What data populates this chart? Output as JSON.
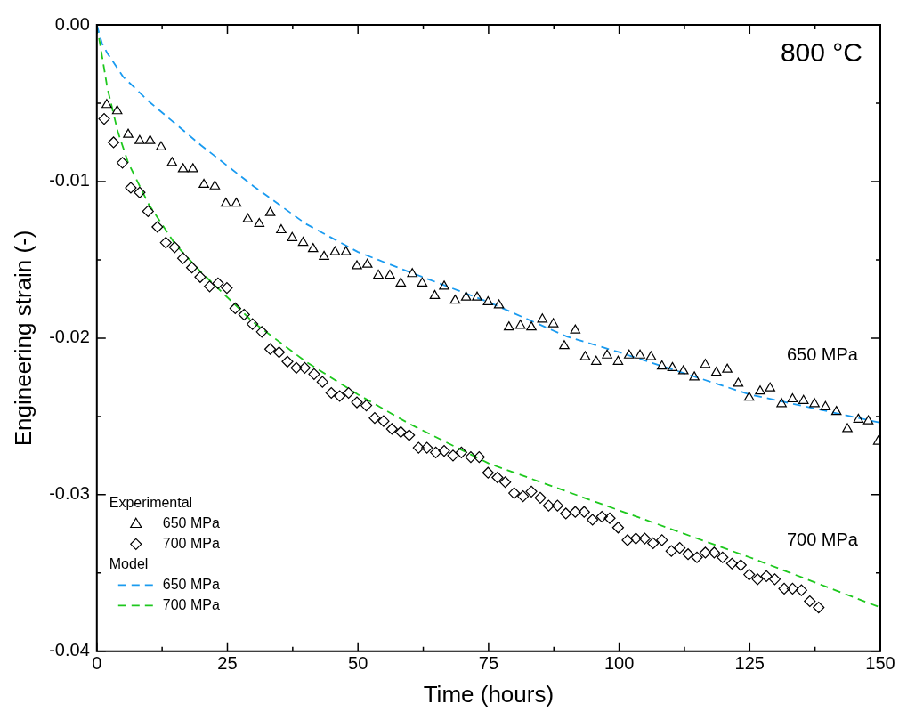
{
  "chart_data": {
    "type": "scatter",
    "xlabel": "Time (hours)",
    "ylabel": "Engineering strain (-)",
    "xlim": [
      0,
      150
    ],
    "xticks": [
      0,
      {
        "value": 12.5,
        "label": null
      },
      25,
      {
        "value": 37.5,
        "label": null
      },
      50,
      {
        "value": 62.5,
        "label": null
      },
      75,
      {
        "value": 87.5,
        "label": null
      },
      100,
      {
        "value": 112.5,
        "label": null
      },
      125,
      {
        "value": 137.5,
        "label": null
      },
      150
    ],
    "ylim": [
      -0.04,
      0
    ],
    "yticks": [
      {
        "value": -0.04,
        "label": "-0.04"
      },
      {
        "value": -0.035,
        "label": null
      },
      {
        "value": -0.03,
        "label": "-0.03"
      },
      {
        "value": -0.025,
        "label": null
      },
      {
        "value": -0.02,
        "label": "-0.02"
      },
      {
        "value": -0.015,
        "label": null
      },
      {
        "value": -0.01,
        "label": "-0.01"
      },
      {
        "value": -0.005,
        "label": null
      },
      {
        "value": 0,
        "label": "0.00"
      }
    ],
    "grid": false,
    "legend": "bottom left",
    "annotations": [
      "800 °C",
      "Experimental",
      "Model",
      "650 MPa",
      "700 MPa"
    ],
    "series": [
      {
        "name": "650 MPa",
        "marker": "triangle",
        "color": "#000000",
        "x": [
          1.9,
          3.9,
          6,
          8.2,
          10.2,
          12.3,
          14.4,
          16.5,
          18.4,
          20.5,
          22.6,
          24.7,
          26.7,
          28.9,
          31.1,
          33.2,
          35.3,
          37.4,
          39.5,
          41.4,
          43.5,
          45.6,
          47.7,
          49.8,
          51.8,
          53.9,
          56.1,
          58.2,
          60.4,
          62.3,
          64.7,
          66.5,
          68.6,
          70.7,
          72.8,
          74.9,
          77,
          78.9,
          81.1,
          83.2,
          85.3,
          87.4,
          89.5,
          91.6,
          93.5,
          95.6,
          97.7,
          99.8,
          101.9,
          104,
          106.1,
          108.2,
          110.2,
          112.3,
          114.4,
          116.5,
          118.6,
          120.7,
          122.8,
          124.9,
          127,
          128.9,
          131.1,
          133.2,
          135.3,
          137.4,
          139.5,
          141.6,
          143.7,
          145.8,
          147.7,
          149.6
        ],
        "values": [
          -0.0051,
          -0.0055,
          -0.007,
          -0.0074,
          -0.0074,
          -0.0078,
          -0.0088,
          -0.0092,
          -0.0092,
          -0.0102,
          -0.0103,
          -0.0114,
          -0.0114,
          -0.0124,
          -0.0127,
          -0.012,
          -0.0131,
          -0.0136,
          -0.0139,
          -0.0143,
          -0.0148,
          -0.0145,
          -0.0145,
          -0.0154,
          -0.0153,
          -0.016,
          -0.016,
          -0.0165,
          -0.0159,
          -0.0165,
          -0.0173,
          -0.0167,
          -0.0176,
          -0.0174,
          -0.0174,
          -0.0177,
          -0.0179,
          -0.0193,
          -0.0192,
          -0.0193,
          -0.0188,
          -0.0191,
          -0.0205,
          -0.0195,
          -0.0212,
          -0.0215,
          -0.0211,
          -0.0215,
          -0.0211,
          -0.0211,
          -0.0212,
          -0.0218,
          -0.0219,
          -0.0221,
          -0.0225,
          -0.0217,
          -0.0222,
          -0.022,
          -0.0229,
          -0.0238,
          -0.0234,
          -0.0232,
          -0.0242,
          -0.0239,
          -0.024,
          -0.0242,
          -0.0244,
          -0.0247,
          -0.0258,
          -0.0252,
          -0.0253,
          -0.0266
        ]
      },
      {
        "name": "700 MPa",
        "marker": "diamond",
        "color": "#000000",
        "x": [
          1.4,
          3.2,
          4.9,
          6.5,
          8.2,
          9.8,
          11.6,
          13.2,
          14.9,
          16.5,
          18.2,
          19.8,
          21.6,
          23.2,
          24.9,
          26.5,
          28.2,
          29.8,
          31.6,
          33.2,
          34.9,
          36.5,
          38.2,
          39.8,
          41.6,
          43.2,
          44.9,
          46.5,
          48.2,
          49.8,
          51.6,
          53.2,
          54.9,
          56.5,
          58.2,
          59.8,
          61.6,
          63.2,
          64.9,
          66.5,
          68.2,
          69.8,
          71.6,
          73.2,
          74.9,
          76.7,
          78.2,
          79.9,
          81.6,
          83.2,
          84.9,
          86.5,
          88.2,
          89.8,
          91.6,
          93.3,
          94.9,
          96.7,
          98.2,
          99.8,
          101.6,
          103.2,
          104.9,
          106.5,
          108.2,
          110,
          111.6,
          113.2,
          114.9,
          116.5,
          118.2,
          119.8,
          121.6,
          123.3,
          124.9,
          126.5,
          128.2,
          129.8,
          131.6,
          133.2,
          134.9,
          136.5,
          138.2
        ],
        "values": [
          -0.006,
          -0.0075,
          -0.0088,
          -0.0104,
          -0.0107,
          -0.0119,
          -0.0129,
          -0.0139,
          -0.0142,
          -0.0149,
          -0.0155,
          -0.0161,
          -0.0167,
          -0.0165,
          -0.0168,
          -0.0181,
          -0.0185,
          -0.0191,
          -0.0196,
          -0.0207,
          -0.0209,
          -0.0215,
          -0.0219,
          -0.0219,
          -0.0223,
          -0.0228,
          -0.0235,
          -0.0237,
          -0.0235,
          -0.0241,
          -0.0243,
          -0.0251,
          -0.0253,
          -0.0258,
          -0.026,
          -0.0262,
          -0.027,
          -0.027,
          -0.0273,
          -0.0272,
          -0.0275,
          -0.0273,
          -0.0276,
          -0.0276,
          -0.0286,
          -0.0289,
          -0.0292,
          -0.0299,
          -0.0301,
          -0.0298,
          -0.0302,
          -0.0307,
          -0.0307,
          -0.0312,
          -0.0311,
          -0.0311,
          -0.0316,
          -0.0314,
          -0.0315,
          -0.0321,
          -0.0329,
          -0.0328,
          -0.0328,
          -0.0331,
          -0.0329,
          -0.0336,
          -0.0334,
          -0.0338,
          -0.034,
          -0.0337,
          -0.0337,
          -0.034,
          -0.0344,
          -0.0345,
          -0.0351,
          -0.0354,
          -0.0352,
          -0.0354,
          -0.036,
          -0.036,
          -0.0361,
          -0.0368,
          -0.0372
        ]
      },
      {
        "name": "650 MPa",
        "type": "line",
        "line_style": "dashed",
        "color": "#1a9bf0",
        "x": [
          0,
          1,
          2,
          5,
          10,
          20,
          30,
          40,
          50,
          60,
          75,
          90,
          100,
          125,
          150
        ],
        "values": [
          0,
          -0.0012,
          -0.0018,
          -0.0033,
          -0.0049,
          -0.0077,
          -0.0103,
          -0.0127,
          -0.0145,
          -0.0158,
          -0.0177,
          -0.0199,
          -0.0209,
          -0.0236,
          -0.0254
        ]
      },
      {
        "name": "700 MPa",
        "type": "line",
        "line_style": "dashed",
        "color": "#1ec81e",
        "x": [
          0,
          1,
          2,
          4,
          6,
          10,
          15,
          20,
          30,
          40,
          50,
          60,
          75,
          90,
          100,
          125,
          150
        ],
        "values": [
          0,
          -0.002,
          -0.004,
          -0.0068,
          -0.0088,
          -0.0115,
          -0.014,
          -0.0158,
          -0.019,
          -0.0215,
          -0.0236,
          -0.0255,
          -0.028,
          -0.0298,
          -0.031,
          -0.034,
          -0.0372
        ]
      }
    ]
  }
}
